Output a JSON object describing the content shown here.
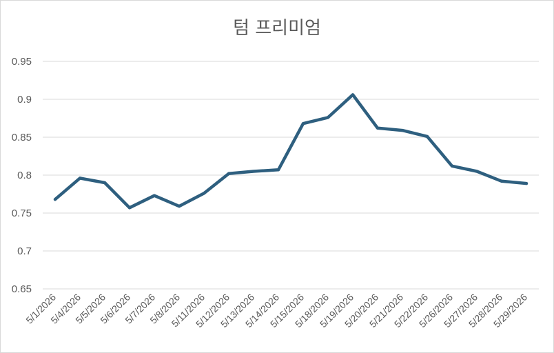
{
  "chart_data": {
    "type": "line",
    "title": "텀 프리미엄",
    "xlabel": "",
    "ylabel": "",
    "categories": [
      "5/1/2026",
      "5/4/2026",
      "5/5/2026",
      "5/6/2026",
      "5/7/2026",
      "5/8/2026",
      "5/11/2026",
      "5/12/2026",
      "5/13/2026",
      "5/14/2026",
      "5/15/2026",
      "5/18/2026",
      "5/19/2026",
      "5/20/2026",
      "5/21/2026",
      "5/22/2026",
      "5/26/2026",
      "5/27/2026",
      "5/28/2026",
      "5/29/2026"
    ],
    "series": [
      {
        "values": [
          0.768,
          0.796,
          0.79,
          0.757,
          0.773,
          0.759,
          0.776,
          0.802,
          0.805,
          0.807,
          0.868,
          0.876,
          0.906,
          0.862,
          0.859,
          0.851,
          0.812,
          0.805,
          0.792,
          0.789
        ]
      }
    ],
    "ylim": [
      0.65,
      0.95
    ],
    "yticks": [
      "0.65",
      "0.7",
      "0.75",
      "0.8",
      "0.85",
      "0.9",
      "0.95"
    ],
    "grid": true,
    "legend": "none",
    "line_color": "#2e5f7f",
    "grid_color": "#d9d9d9"
  }
}
